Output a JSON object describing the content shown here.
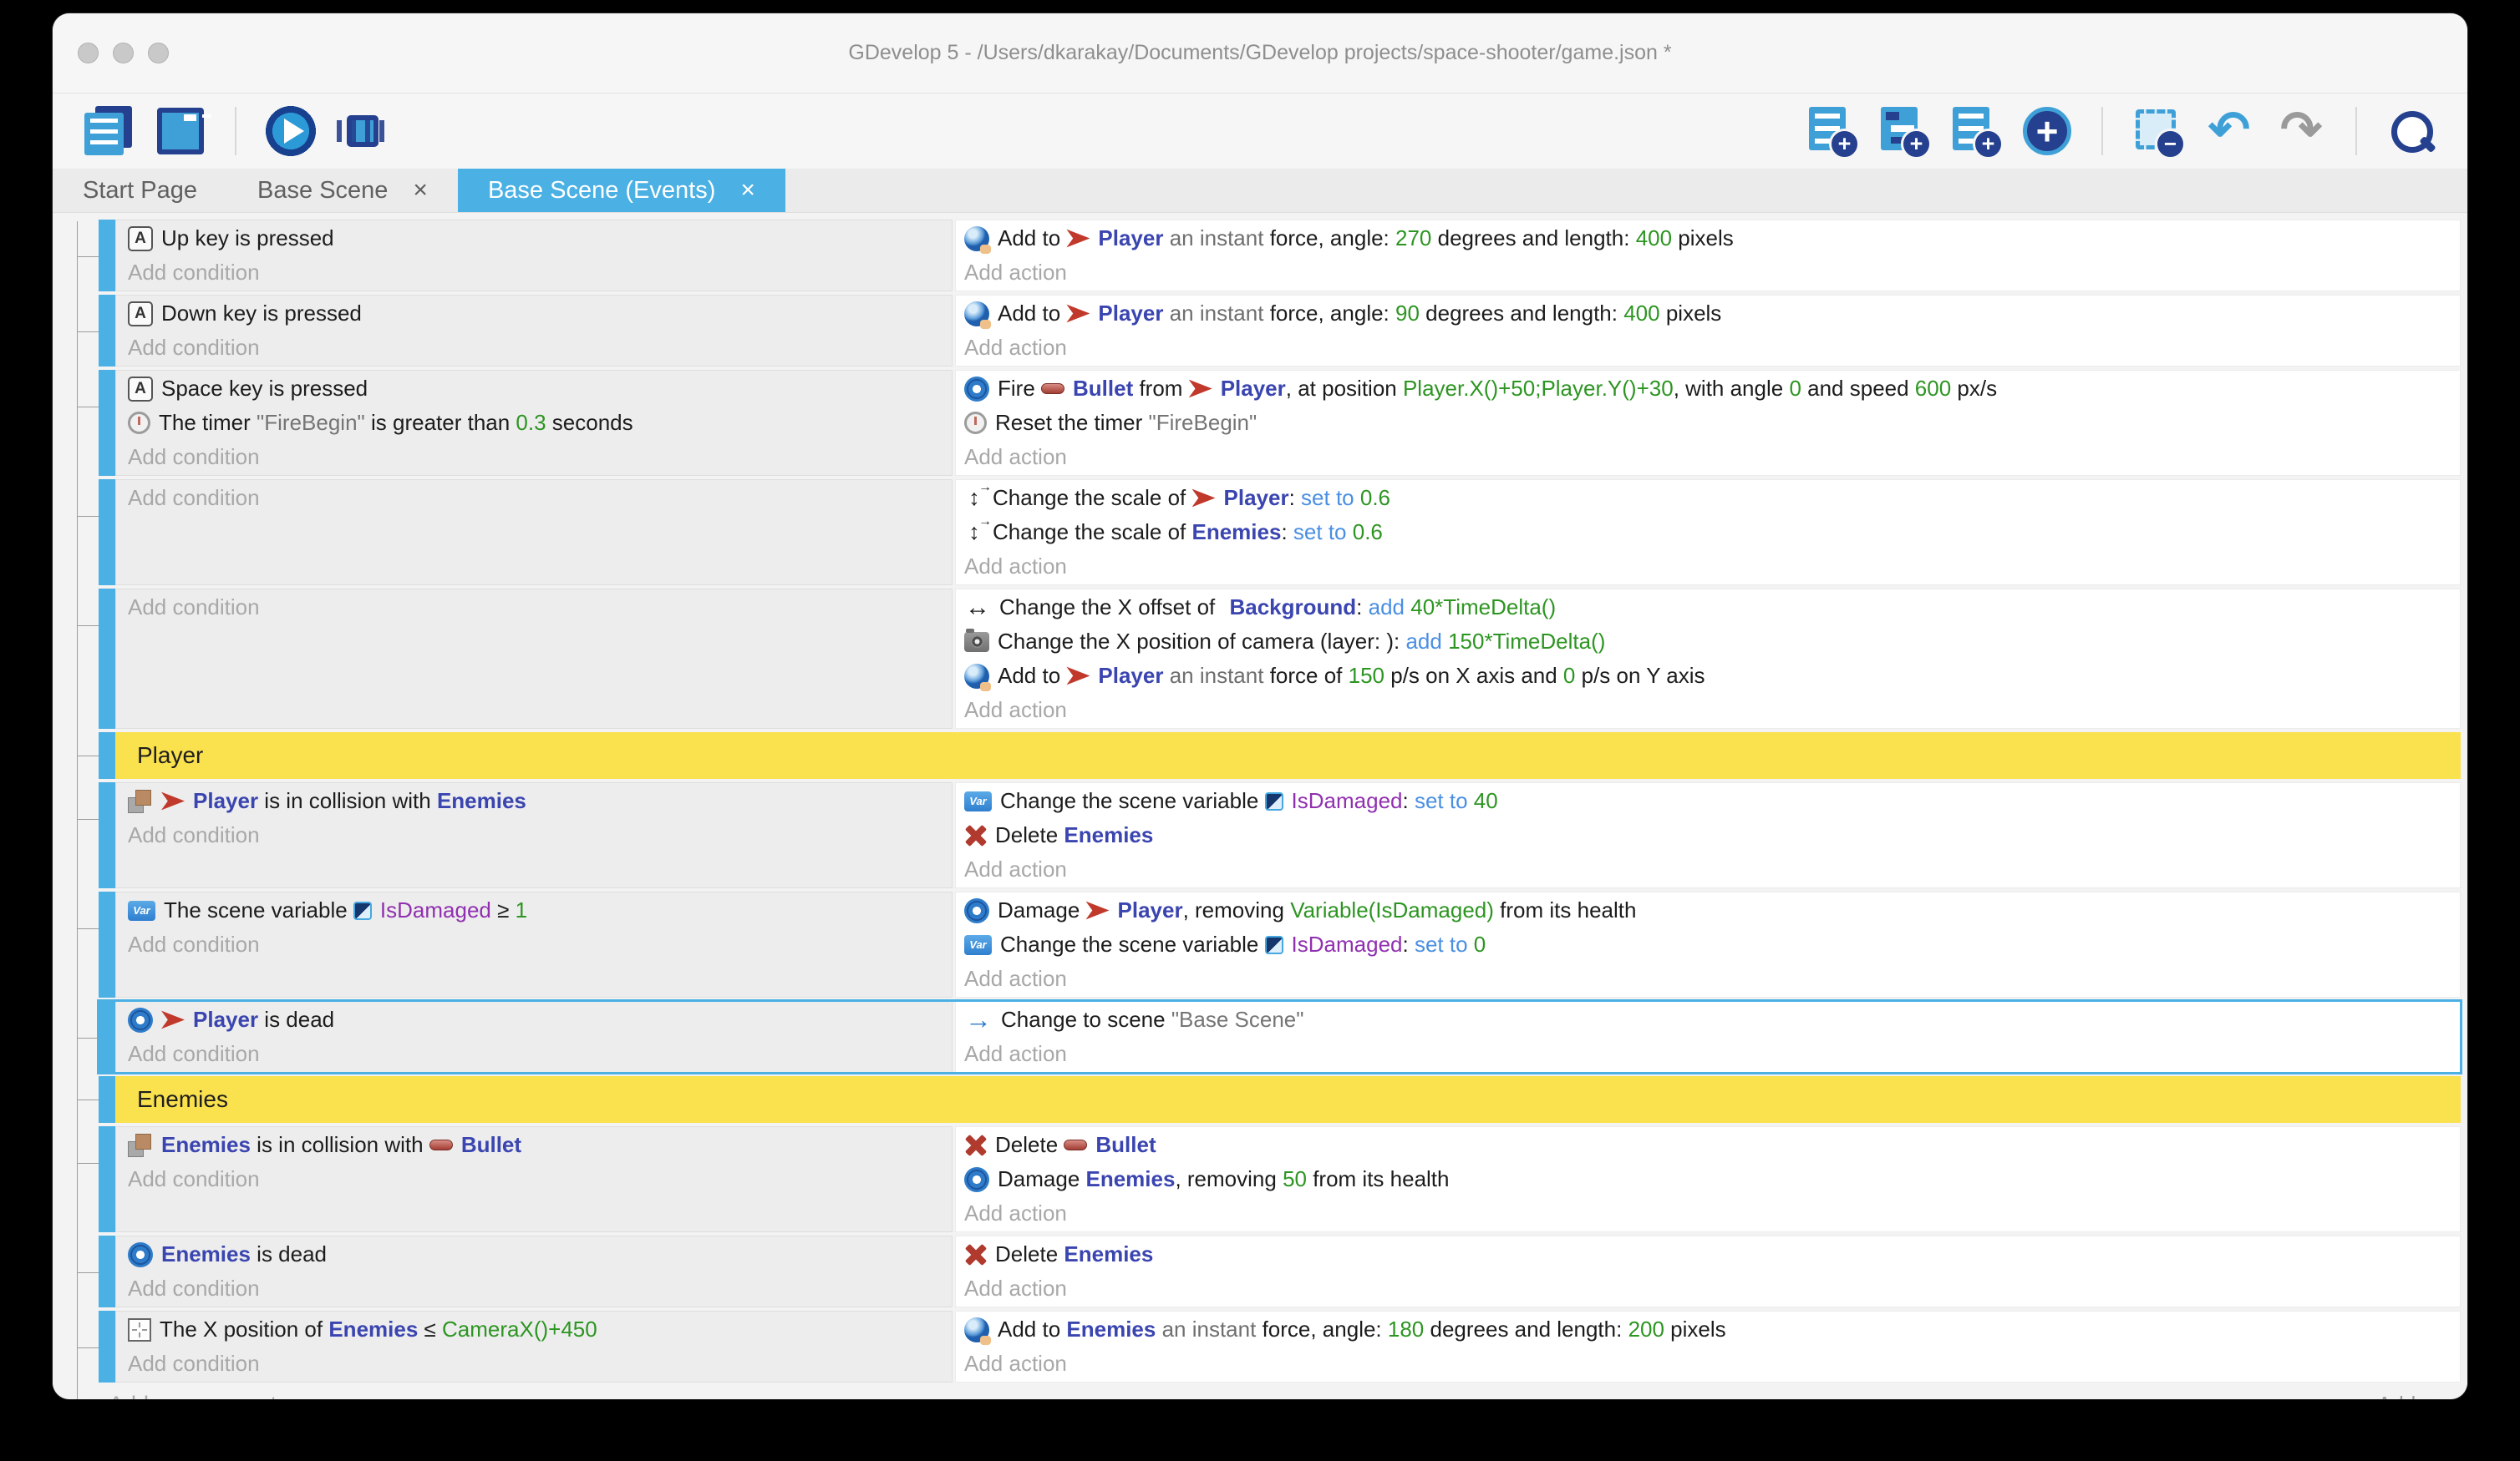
{
  "window": {
    "title": "GDevelop 5 - /Users/dkarakay/Documents/GDevelop projects/space-shooter/game.json *"
  },
  "colors": {
    "accent_blue": "#4bb0e3",
    "group_yellow": "#fae14e",
    "object_blue": "#3a45b0",
    "value_green": "#2d9522",
    "operator_blue": "#4a8fe2",
    "variable_purple": "#9030b0"
  },
  "toolbar": {
    "left_icons": [
      "project-manager-icon",
      "scene-editor-icon",
      "play-icon",
      "debug-icon"
    ],
    "right_icons": [
      "add-event-icon",
      "add-subevent-icon",
      "add-comment-icon",
      "add-circle-icon",
      "deselect-icon",
      "undo-icon",
      "redo-icon",
      "search-icon"
    ]
  },
  "tabs": [
    {
      "label": "Start Page",
      "active": false,
      "close": ""
    },
    {
      "label": "Base Scene",
      "active": false,
      "close": "×"
    },
    {
      "label": "Base Scene (Events)",
      "active": true,
      "close": "×"
    }
  ],
  "labels": {
    "add_condition": "Add condition",
    "add_action": "Add action"
  },
  "footer": {
    "add_new_event": "Add a new event",
    "add_more": "Add..."
  },
  "events": [
    {
      "type": "event",
      "conditions": [
        [
          {
            "k": "i",
            "n": "key-icon"
          },
          {
            "t": "Up key is pressed"
          }
        ]
      ],
      "actions": [
        [
          {
            "k": "i",
            "n": "force-icon"
          },
          {
            "t": "Add to "
          },
          {
            "k": "i",
            "n": "player-icon"
          },
          {
            "k": "o",
            "t": "Player"
          },
          {
            "k": "f",
            "t": " an instant "
          },
          {
            "t": "force, angle: "
          },
          {
            "k": "n",
            "t": "270"
          },
          {
            "t": " degrees and length: "
          },
          {
            "k": "n",
            "t": "400"
          },
          {
            "t": " pixels"
          }
        ]
      ]
    },
    {
      "type": "event",
      "conditions": [
        [
          {
            "k": "i",
            "n": "key-icon"
          },
          {
            "t": "Down key is pressed"
          }
        ]
      ],
      "actions": [
        [
          {
            "k": "i",
            "n": "force-icon"
          },
          {
            "t": "Add to "
          },
          {
            "k": "i",
            "n": "player-icon"
          },
          {
            "k": "o",
            "t": "Player"
          },
          {
            "k": "f",
            "t": " an instant "
          },
          {
            "t": "force, angle: "
          },
          {
            "k": "n",
            "t": "90"
          },
          {
            "t": " degrees and length: "
          },
          {
            "k": "n",
            "t": "400"
          },
          {
            "t": " pixels"
          }
        ]
      ]
    },
    {
      "type": "event",
      "conditions": [
        [
          {
            "k": "i",
            "n": "key-icon"
          },
          {
            "t": "Space key is pressed"
          }
        ],
        [
          {
            "k": "i",
            "n": "timer-icon"
          },
          {
            "t": "The timer "
          },
          {
            "k": "s",
            "t": "\"FireBegin\""
          },
          {
            "t": " is greater than "
          },
          {
            "k": "n",
            "t": "0.3"
          },
          {
            "t": " seconds"
          }
        ]
      ],
      "actions": [
        [
          {
            "k": "i",
            "n": "gear-icon"
          },
          {
            "t": "Fire "
          },
          {
            "k": "i",
            "n": "bullet-icon"
          },
          {
            "k": "o",
            "t": "Bullet"
          },
          {
            "t": " from "
          },
          {
            "k": "i",
            "n": "player-icon"
          },
          {
            "k": "o",
            "t": "Player"
          },
          {
            "t": ", at position "
          },
          {
            "k": "n",
            "t": "Player.X()+50;Player.Y()+30"
          },
          {
            "t": ", with angle "
          },
          {
            "k": "n",
            "t": "0"
          },
          {
            "t": " and speed "
          },
          {
            "k": "n",
            "t": "600"
          },
          {
            "t": " px/s"
          }
        ],
        [
          {
            "k": "i",
            "n": "timer-icon"
          },
          {
            "t": "Reset the timer "
          },
          {
            "k": "s",
            "t": "\"FireBegin\""
          }
        ]
      ]
    },
    {
      "type": "event",
      "conditions": [],
      "actions": [
        [
          {
            "k": "i",
            "n": "scale-icon"
          },
          {
            "t": "Change the scale of "
          },
          {
            "k": "i",
            "n": "player-icon"
          },
          {
            "k": "o",
            "t": "Player"
          },
          {
            "t": ": "
          },
          {
            "k": "op",
            "t": "set to "
          },
          {
            "k": "n",
            "t": "0.6"
          }
        ],
        [
          {
            "k": "i",
            "n": "scale-icon"
          },
          {
            "t": "Change the scale of "
          },
          {
            "k": "o",
            "t": "Enemies"
          },
          {
            "t": ": "
          },
          {
            "k": "op",
            "t": "set to "
          },
          {
            "k": "n",
            "t": "0.6"
          }
        ]
      ]
    },
    {
      "type": "event",
      "conditions": [],
      "actions": [
        [
          {
            "k": "i",
            "n": "x-offset-icon"
          },
          {
            "t": "Change the X offset of "
          },
          {
            "k": "i",
            "n": "background-thumbnail-icon"
          },
          {
            "k": "o",
            "t": "Background"
          },
          {
            "t": ": "
          },
          {
            "k": "op",
            "t": "add "
          },
          {
            "k": "n",
            "t": "40*TimeDelta()"
          }
        ],
        [
          {
            "k": "i",
            "n": "camera-icon"
          },
          {
            "t": "Change the X position of camera (layer: ): "
          },
          {
            "k": "op",
            "t": "add "
          },
          {
            "k": "n",
            "t": "150*TimeDelta()"
          }
        ],
        [
          {
            "k": "i",
            "n": "force-icon"
          },
          {
            "t": "Add to "
          },
          {
            "k": "i",
            "n": "player-icon"
          },
          {
            "k": "o",
            "t": "Player"
          },
          {
            "k": "f",
            "t": " an instant "
          },
          {
            "t": "force of "
          },
          {
            "k": "n",
            "t": "150"
          },
          {
            "t": " p/s on X axis and "
          },
          {
            "k": "n",
            "t": "0"
          },
          {
            "t": " p/s on Y axis"
          }
        ]
      ]
    },
    {
      "type": "group",
      "label": "Player"
    },
    {
      "type": "event",
      "conditions": [
        [
          {
            "k": "i",
            "n": "collision-icon"
          },
          {
            "k": "i",
            "n": "player-icon"
          },
          {
            "k": "o",
            "t": "Player"
          },
          {
            "t": " is in collision with "
          },
          {
            "k": "o",
            "t": "Enemies"
          }
        ]
      ],
      "actions": [
        [
          {
            "k": "i",
            "n": "variable-icon"
          },
          {
            "t": "Change the scene variable "
          },
          {
            "k": "i",
            "n": "variable-badge-icon"
          },
          {
            "k": "v",
            "t": "IsDamaged"
          },
          {
            "t": ": "
          },
          {
            "k": "op",
            "t": "set to "
          },
          {
            "k": "n",
            "t": "40"
          }
        ],
        [
          {
            "k": "i",
            "n": "delete-icon"
          },
          {
            "t": "Delete "
          },
          {
            "k": "o",
            "t": "Enemies"
          }
        ]
      ]
    },
    {
      "type": "event",
      "conditions": [
        [
          {
            "k": "i",
            "n": "variable-icon"
          },
          {
            "t": "The scene variable "
          },
          {
            "k": "i",
            "n": "variable-badge-icon"
          },
          {
            "k": "v",
            "t": "IsDamaged"
          },
          {
            "t": " ≥ "
          },
          {
            "k": "n",
            "t": "1"
          }
        ]
      ],
      "actions": [
        [
          {
            "k": "i",
            "n": "gear-icon"
          },
          {
            "t": "Damage "
          },
          {
            "k": "i",
            "n": "player-icon"
          },
          {
            "k": "o",
            "t": "Player"
          },
          {
            "t": ", removing "
          },
          {
            "k": "n",
            "t": "Variable(IsDamaged)"
          },
          {
            "t": " from its health"
          }
        ],
        [
          {
            "k": "i",
            "n": "variable-icon"
          },
          {
            "t": "Change the scene variable "
          },
          {
            "k": "i",
            "n": "variable-badge-icon"
          },
          {
            "k": "v",
            "t": "IsDamaged"
          },
          {
            "t": ": "
          },
          {
            "k": "op",
            "t": "set to "
          },
          {
            "k": "n",
            "t": "0"
          }
        ]
      ]
    },
    {
      "type": "event",
      "selected": true,
      "conditions": [
        [
          {
            "k": "i",
            "n": "gear-icon"
          },
          {
            "k": "i",
            "n": "player-icon"
          },
          {
            "k": "o",
            "t": "Player"
          },
          {
            "t": " is dead"
          }
        ]
      ],
      "actions": [
        [
          {
            "k": "i",
            "n": "scene-change-icon"
          },
          {
            "t": "Change to scene "
          },
          {
            "k": "s",
            "t": "\"Base Scene\""
          }
        ]
      ]
    },
    {
      "type": "group",
      "label": "Enemies"
    },
    {
      "type": "event",
      "conditions": [
        [
          {
            "k": "i",
            "n": "collision-icon"
          },
          {
            "k": "o",
            "t": "Enemies"
          },
          {
            "t": " is in collision with "
          },
          {
            "k": "i",
            "n": "bullet-icon"
          },
          {
            "k": "o",
            "t": "Bullet"
          }
        ]
      ],
      "actions": [
        [
          {
            "k": "i",
            "n": "delete-icon"
          },
          {
            "t": "Delete "
          },
          {
            "k": "i",
            "n": "bullet-icon"
          },
          {
            "k": "o",
            "t": "Bullet"
          }
        ],
        [
          {
            "k": "i",
            "n": "gear-icon"
          },
          {
            "t": "Damage "
          },
          {
            "k": "o",
            "t": "Enemies"
          },
          {
            "t": ", removing "
          },
          {
            "k": "n",
            "t": "50"
          },
          {
            "t": " from its health"
          }
        ]
      ]
    },
    {
      "type": "event",
      "conditions": [
        [
          {
            "k": "i",
            "n": "gear-icon"
          },
          {
            "k": "o",
            "t": "Enemies"
          },
          {
            "t": " is dead"
          }
        ]
      ],
      "actions": [
        [
          {
            "k": "i",
            "n": "delete-icon"
          },
          {
            "t": "Delete "
          },
          {
            "k": "o",
            "t": "Enemies"
          }
        ]
      ]
    },
    {
      "type": "event",
      "conditions": [
        [
          {
            "k": "i",
            "n": "position-icon"
          },
          {
            "t": "The X position of "
          },
          {
            "k": "o",
            "t": "Enemies"
          },
          {
            "t": " ≤ "
          },
          {
            "k": "n",
            "t": "CameraX()+450"
          }
        ]
      ],
      "actions": [
        [
          {
            "k": "i",
            "n": "force-icon"
          },
          {
            "t": "Add to "
          },
          {
            "k": "o",
            "t": "Enemies"
          },
          {
            "k": "f",
            "t": " an instant "
          },
          {
            "t": "force, angle: "
          },
          {
            "k": "n",
            "t": "180"
          },
          {
            "t": " degrees and length: "
          },
          {
            "k": "n",
            "t": "200"
          },
          {
            "t": " pixels"
          }
        ]
      ]
    }
  ]
}
